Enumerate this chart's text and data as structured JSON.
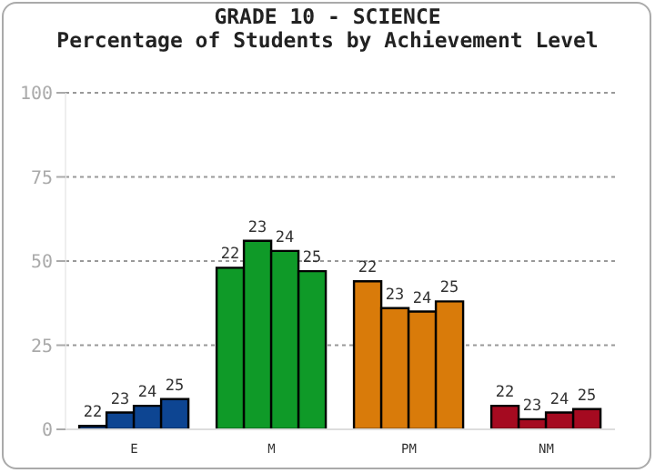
{
  "chart_data": {
    "type": "bar",
    "title": "GRADE 10 - SCIENCE",
    "subtitle": "Percentage of Students by Achievement Level",
    "categories": [
      "E",
      "M",
      "PM",
      "NM"
    ],
    "series": [
      {
        "name": "22",
        "colors": [
          "#0d4592",
          "#0f9a28",
          "#d97b0a",
          "#a50a20"
        ],
        "values": [
          1,
          48,
          44,
          7
        ]
      },
      {
        "name": "23",
        "colors": [
          "#0d4592",
          "#0f9a28",
          "#d97b0a",
          "#a50a20"
        ],
        "values": [
          5,
          56,
          36,
          3
        ]
      },
      {
        "name": "24",
        "colors": [
          "#0d4592",
          "#0f9a28",
          "#d97b0a",
          "#a50a20"
        ],
        "values": [
          7,
          53,
          35,
          5
        ]
      },
      {
        "name": "25",
        "colors": [
          "#0d4592",
          "#0f9a28",
          "#d97b0a",
          "#a50a20"
        ],
        "values": [
          9,
          47,
          38,
          6
        ]
      }
    ],
    "ylim": [
      0,
      100
    ],
    "yticks": [
      0,
      25,
      50,
      75,
      100
    ],
    "grid": "y",
    "legend": false
  }
}
